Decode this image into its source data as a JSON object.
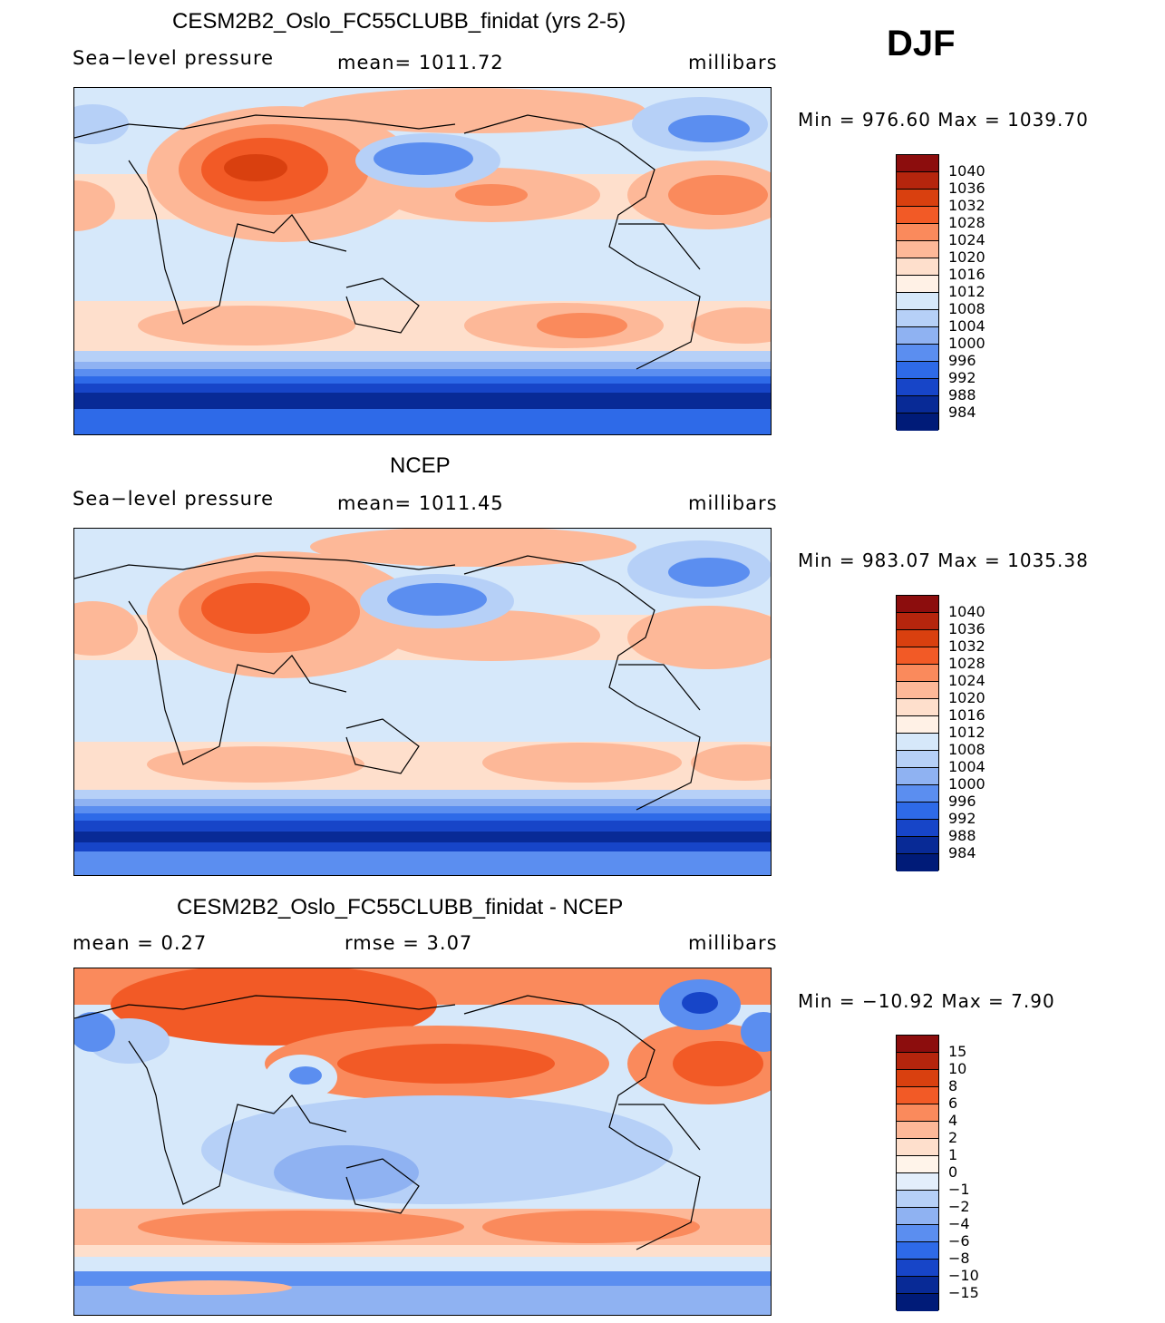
{
  "season": "DJF",
  "panels": [
    {
      "title": "CESM2B2_Oslo_FC55CLUBB_finidat (yrs 2-5)",
      "left_label": "Sea−level pressure",
      "center_label": "mean=  1011.72",
      "right_label": "millibars",
      "minmax": "Min  =  976.60  Max  =  1039.70",
      "colorbar": [
        "1040",
        "1036",
        "1032",
        "1028",
        "1024",
        "1020",
        "1016",
        "1012",
        "1008",
        "1004",
        "1000",
        "996",
        "992",
        "988",
        "984"
      ]
    },
    {
      "title": "NCEP",
      "left_label": "Sea−level pressure",
      "center_label": "mean=  1011.45",
      "right_label": "millibars",
      "minmax": "Min  =  983.07  Max  =  1035.38",
      "colorbar": [
        "1040",
        "1036",
        "1032",
        "1028",
        "1024",
        "1020",
        "1016",
        "1012",
        "1008",
        "1004",
        "1000",
        "996",
        "992",
        "988",
        "984"
      ]
    },
    {
      "title": "CESM2B2_Oslo_FC55CLUBB_finidat - NCEP",
      "left_label": "mean  =      0.27",
      "center_label": "rmse  =      3.07",
      "right_label": "millibars",
      "minmax": "Min  =  −10.92  Max  =      7.90",
      "colorbar": [
        "15",
        "10",
        "8",
        "6",
        "4",
        "2",
        "1",
        "0",
        "−1",
        "−2",
        "−4",
        "−6",
        "−8",
        "−10",
        "−15"
      ]
    }
  ],
  "colors": {
    "abs_scale": [
      "#8c0d0d",
      "#b5250d",
      "#d9400f",
      "#f25a26",
      "#fa8a5c",
      "#fdb898",
      "#fedfcc",
      "#fff1e6",
      "#d6e8fa",
      "#b6d0f7",
      "#8fb2f2",
      "#5b8ef0",
      "#2e6ae8",
      "#1745c8",
      "#082a96",
      "#001b78"
    ],
    "diff_scale": [
      "#8c0d0d",
      "#b5250d",
      "#d9400f",
      "#f25a26",
      "#fa8a5c",
      "#fdb898",
      "#fedfcc",
      "#fff4ea",
      "#e3eefb",
      "#b6d0f7",
      "#8fb2f2",
      "#5b8ef0",
      "#2e6ae8",
      "#1745c8",
      "#082a96",
      "#001b78"
    ]
  }
}
